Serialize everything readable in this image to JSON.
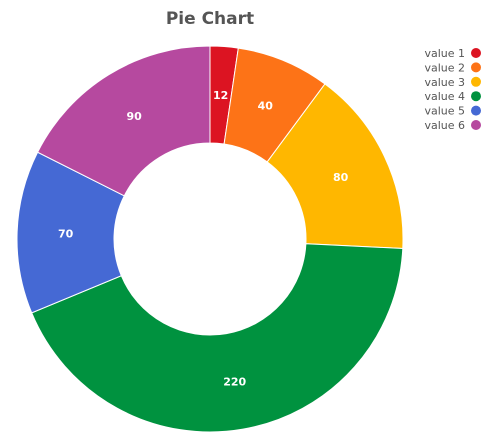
{
  "chart_data": {
    "type": "pie",
    "variant": "donut",
    "title": "Pie Chart",
    "legend_position": "top-right",
    "categories": [
      "value 1",
      "value 2",
      "value 3",
      "value 4",
      "value 5",
      "value 6"
    ],
    "values": [
      12,
      40,
      80,
      220,
      70,
      90
    ],
    "colors": [
      "#dc1422",
      "#fd7317",
      "#ffb700",
      "#00923f",
      "#4569d4",
      "#b6499f"
    ]
  }
}
